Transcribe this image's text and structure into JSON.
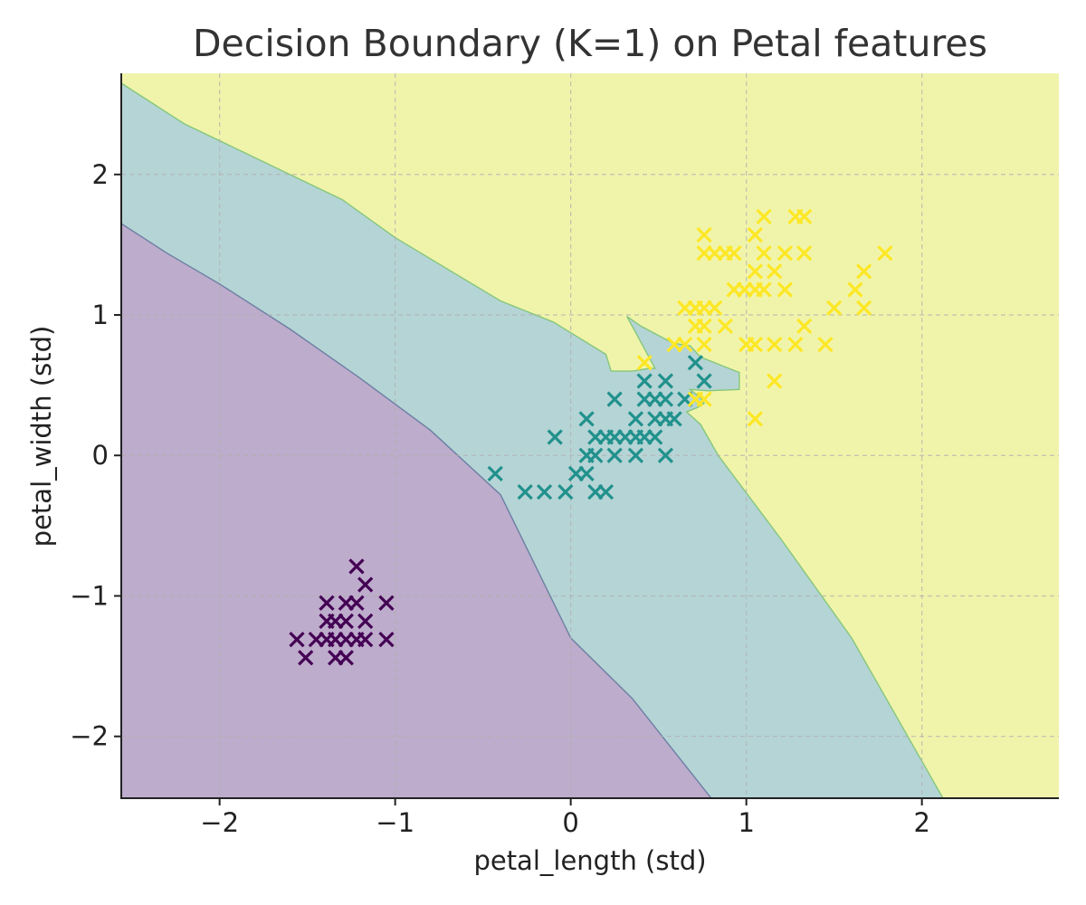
{
  "chart_data": {
    "type": "scatter",
    "title": "Decision Boundary (K=1) on Petal features",
    "xlabel": "petal_length (std)",
    "ylabel": "petal_width (std)",
    "xlim": [
      -2.56,
      2.78
    ],
    "ylim": [
      -2.44,
      2.72
    ],
    "x_ticks": [
      {
        "value": -2,
        "label": "−2"
      },
      {
        "value": -1,
        "label": "−1"
      },
      {
        "value": 0,
        "label": "0"
      },
      {
        "value": 1,
        "label": "1"
      },
      {
        "value": 2,
        "label": "2"
      }
    ],
    "y_ticks": [
      {
        "value": -2,
        "label": "−2"
      },
      {
        "value": -1,
        "label": "−1"
      },
      {
        "value": 0,
        "label": "0"
      },
      {
        "value": 1,
        "label": "1"
      },
      {
        "value": 2,
        "label": "2"
      }
    ],
    "grid": true,
    "marker": "x",
    "regions": [
      {
        "class": 0,
        "color": "#bdaccb",
        "polygon": [
          [
            -2.56,
            1.65
          ],
          [
            -2.3,
            1.44
          ],
          [
            -2.0,
            1.22
          ],
          [
            -1.6,
            0.9
          ],
          [
            -1.2,
            0.55
          ],
          [
            -0.8,
            0.18
          ],
          [
            -0.4,
            -0.28
          ],
          [
            0.0,
            -1.3
          ],
          [
            0.35,
            -1.73
          ],
          [
            0.8,
            -2.44
          ],
          [
            -2.56,
            -2.44
          ]
        ]
      },
      {
        "class": 1,
        "color": "#b5d4d6",
        "polygon": [
          [
            -2.56,
            2.65
          ],
          [
            -2.2,
            2.36
          ],
          [
            -1.9,
            2.18
          ],
          [
            -1.3,
            1.82
          ],
          [
            -1.0,
            1.55
          ],
          [
            -0.4,
            1.1
          ],
          [
            -0.1,
            0.95
          ],
          [
            0.2,
            0.72
          ],
          [
            0.23,
            0.6
          ],
          [
            0.35,
            0.6
          ],
          [
            0.45,
            0.62
          ],
          [
            0.48,
            0.62
          ],
          [
            0.32,
            0.99
          ],
          [
            0.4,
            0.92
          ],
          [
            0.58,
            0.8
          ],
          [
            0.68,
            0.78
          ],
          [
            0.74,
            0.7
          ],
          [
            0.86,
            0.64
          ],
          [
            0.96,
            0.59
          ],
          [
            0.96,
            0.47
          ],
          [
            0.78,
            0.46
          ],
          [
            0.68,
            0.47
          ],
          [
            0.74,
            0.41
          ],
          [
            0.76,
            0.37
          ],
          [
            0.72,
            0.34
          ],
          [
            0.66,
            0.31
          ],
          [
            0.74,
            0.22
          ],
          [
            0.84,
            0.0
          ],
          [
            1.2,
            -0.6
          ],
          [
            1.6,
            -1.3
          ],
          [
            2.12,
            -2.44
          ],
          [
            0.8,
            -2.44
          ],
          [
            0.35,
            -1.73
          ],
          [
            0.0,
            -1.3
          ],
          [
            -0.4,
            -0.28
          ],
          [
            -0.8,
            0.18
          ],
          [
            -1.2,
            0.55
          ],
          [
            -1.6,
            0.9
          ],
          [
            -2.0,
            1.22
          ],
          [
            -2.3,
            1.44
          ],
          [
            -2.56,
            1.65
          ]
        ]
      },
      {
        "class": 2,
        "color": "#f0f4ab",
        "polygon": [
          [
            -2.56,
            2.72
          ],
          [
            2.78,
            2.72
          ],
          [
            2.78,
            -2.44
          ],
          [
            -2.56,
            -2.44
          ]
        ]
      }
    ],
    "series": [
      {
        "class": 0,
        "color": "#440154",
        "points": [
          [
            -1.22,
            -0.79
          ],
          [
            -1.17,
            -0.92
          ],
          [
            -1.39,
            -1.05
          ],
          [
            -1.28,
            -1.05
          ],
          [
            -1.22,
            -1.05
          ],
          [
            -1.05,
            -1.05
          ],
          [
            -1.39,
            -1.18
          ],
          [
            -1.34,
            -1.18
          ],
          [
            -1.28,
            -1.18
          ],
          [
            -1.17,
            -1.18
          ],
          [
            -1.56,
            -1.31
          ],
          [
            -1.45,
            -1.31
          ],
          [
            -1.39,
            -1.31
          ],
          [
            -1.34,
            -1.31
          ],
          [
            -1.28,
            -1.31
          ],
          [
            -1.22,
            -1.31
          ],
          [
            -1.17,
            -1.31
          ],
          [
            -1.05,
            -1.31
          ],
          [
            -1.51,
            -1.44
          ],
          [
            -1.34,
            -1.44
          ],
          [
            -1.28,
            -1.44
          ]
        ]
      },
      {
        "class": 1,
        "color": "#21918c",
        "points": [
          [
            -0.43,
            -0.13
          ],
          [
            -0.26,
            -0.26
          ],
          [
            -0.15,
            -0.26
          ],
          [
            -0.03,
            -0.26
          ],
          [
            0.14,
            -0.26
          ],
          [
            0.2,
            -0.26
          ],
          [
            0.03,
            -0.13
          ],
          [
            0.09,
            -0.13
          ],
          [
            0.09,
            0.0
          ],
          [
            0.14,
            0.0
          ],
          [
            0.25,
            0.0
          ],
          [
            0.37,
            0.0
          ],
          [
            0.54,
            0.0
          ],
          [
            -0.09,
            0.13
          ],
          [
            0.14,
            0.13
          ],
          [
            0.2,
            0.13
          ],
          [
            0.25,
            0.13
          ],
          [
            0.31,
            0.13
          ],
          [
            0.37,
            0.13
          ],
          [
            0.42,
            0.13
          ],
          [
            0.48,
            0.13
          ],
          [
            0.09,
            0.26
          ],
          [
            0.37,
            0.26
          ],
          [
            0.48,
            0.26
          ],
          [
            0.54,
            0.26
          ],
          [
            0.59,
            0.26
          ],
          [
            0.25,
            0.4
          ],
          [
            0.42,
            0.4
          ],
          [
            0.48,
            0.4
          ],
          [
            0.54,
            0.4
          ],
          [
            0.65,
            0.4
          ],
          [
            0.42,
            0.53
          ],
          [
            0.54,
            0.53
          ],
          [
            0.76,
            0.53
          ],
          [
            0.71,
            0.66
          ]
        ]
      },
      {
        "class": 2,
        "color": "#fde725",
        "points": [
          [
            0.42,
            0.66
          ],
          [
            0.71,
            0.4
          ],
          [
            0.76,
            0.4
          ],
          [
            1.05,
            0.26
          ],
          [
            1.16,
            0.53
          ],
          [
            0.59,
            0.79
          ],
          [
            0.65,
            0.79
          ],
          [
            0.76,
            0.79
          ],
          [
            1.0,
            0.79
          ],
          [
            1.05,
            0.79
          ],
          [
            1.16,
            0.79
          ],
          [
            1.28,
            0.79
          ],
          [
            1.45,
            0.79
          ],
          [
            0.71,
            0.92
          ],
          [
            0.76,
            0.92
          ],
          [
            0.88,
            0.92
          ],
          [
            1.33,
            0.92
          ],
          [
            0.65,
            1.05
          ],
          [
            0.71,
            1.05
          ],
          [
            0.76,
            1.05
          ],
          [
            0.82,
            1.05
          ],
          [
            1.5,
            1.05
          ],
          [
            1.67,
            1.05
          ],
          [
            0.93,
            1.18
          ],
          [
            0.99,
            1.18
          ],
          [
            1.05,
            1.18
          ],
          [
            1.1,
            1.18
          ],
          [
            1.22,
            1.18
          ],
          [
            1.62,
            1.18
          ],
          [
            1.05,
            1.31
          ],
          [
            1.16,
            1.31
          ],
          [
            1.67,
            1.31
          ],
          [
            0.76,
            1.44
          ],
          [
            0.82,
            1.44
          ],
          [
            0.88,
            1.44
          ],
          [
            0.93,
            1.44
          ],
          [
            1.1,
            1.44
          ],
          [
            1.22,
            1.44
          ],
          [
            1.33,
            1.44
          ],
          [
            1.79,
            1.44
          ],
          [
            0.76,
            1.57
          ],
          [
            1.05,
            1.57
          ],
          [
            1.1,
            1.7
          ],
          [
            1.28,
            1.7
          ],
          [
            1.33,
            1.7
          ]
        ]
      }
    ]
  }
}
